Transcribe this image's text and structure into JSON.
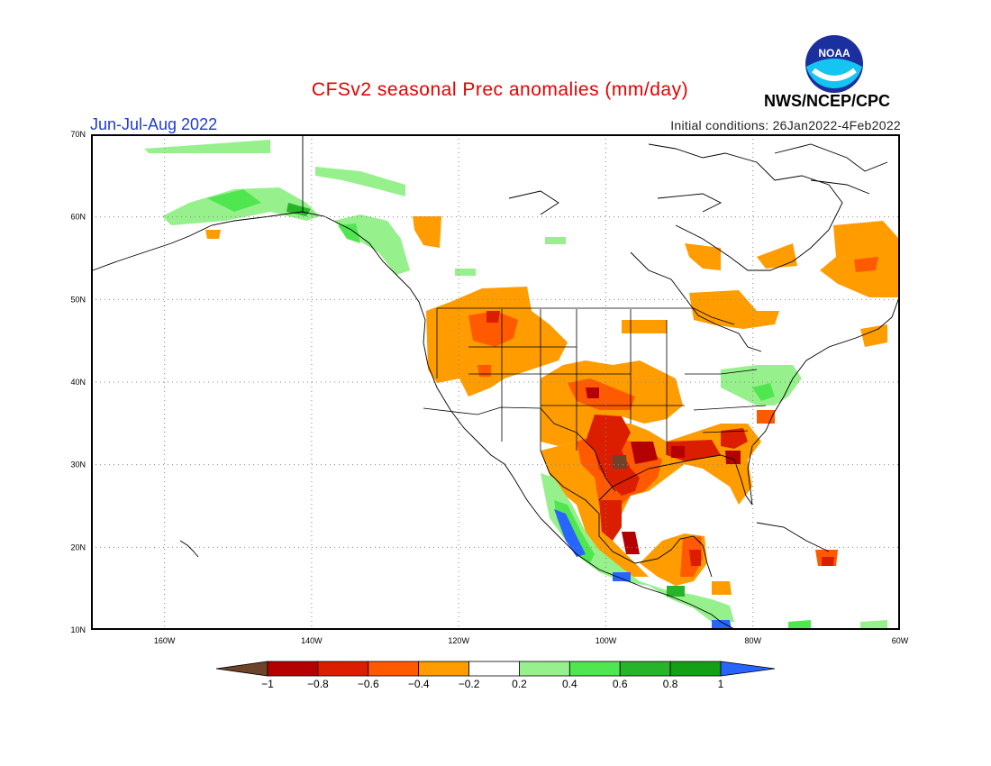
{
  "title": "CFSv2 seasonal Prec anomalies (mm/day)",
  "season": "Jun-Jul-Aug 2022",
  "initial_conditions": "Initial conditions: 26Jan2022-4Feb2022",
  "agency": "NWS/NCEP/CPC",
  "logo_text": "NOAA",
  "axes": {
    "lat_labels": [
      "70N",
      "60N",
      "50N",
      "40N",
      "30N",
      "20N",
      "10N"
    ],
    "lon_labels": [
      "160W",
      "140W",
      "120W",
      "100W",
      "80W",
      "60W"
    ]
  },
  "colorbar": {
    "labels": [
      "−1",
      "−0.8",
      "−0.6",
      "−0.4",
      "−0.2",
      "0.2",
      "0.4",
      "0.6",
      "0.8",
      "1"
    ],
    "colors": [
      "#6e4329",
      "#b40000",
      "#dc1e00",
      "#ff5a00",
      "#ff9c00",
      "#ffffff",
      "#96f08c",
      "#50e650",
      "#28b428",
      "#14a014",
      "#2864ff"
    ]
  },
  "colors": {
    "title": "#e60000",
    "season": "#1f3cd6"
  }
}
